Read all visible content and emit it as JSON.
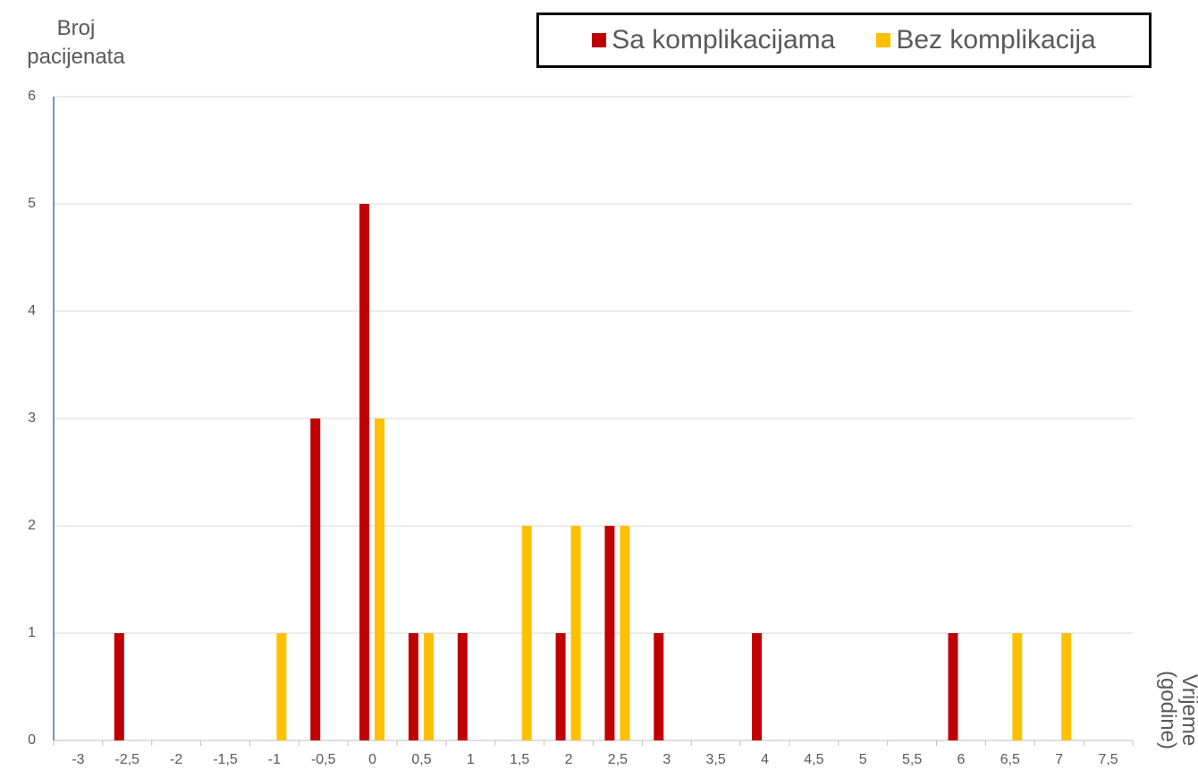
{
  "chart_data": {
    "type": "bar",
    "y_label": "Broj pacijenata",
    "x_label": "Vrijeme (godine)",
    "categories": [
      "-3",
      "-2,5",
      "-2",
      "-1,5",
      "-1",
      "-0,5",
      "0",
      "0,5",
      "1",
      "1,5",
      "2",
      "2,5",
      "3",
      "3,5",
      "4",
      "4,5",
      "5",
      "5,5",
      "6",
      "6,5",
      "7",
      "7,5"
    ],
    "series": [
      {
        "name": "Sa komplikacijama",
        "color": "#c00000",
        "values": [
          0,
          1,
          0,
          0,
          0,
          3,
          5,
          1,
          1,
          0,
          1,
          2,
          1,
          0,
          1,
          0,
          0,
          0,
          1,
          0,
          0,
          0
        ]
      },
      {
        "name": "Bez komplikacija",
        "color": "#ffc000",
        "values": [
          0,
          0,
          0,
          0,
          1,
          0,
          3,
          1,
          0,
          2,
          2,
          2,
          0,
          0,
          0,
          0,
          0,
          0,
          0,
          1,
          1,
          0
        ]
      }
    ],
    "ylim": [
      0,
      6
    ],
    "yticks": [
      0,
      1,
      2,
      3,
      4,
      5,
      6
    ],
    "grid": true,
    "legend": "top-right"
  }
}
